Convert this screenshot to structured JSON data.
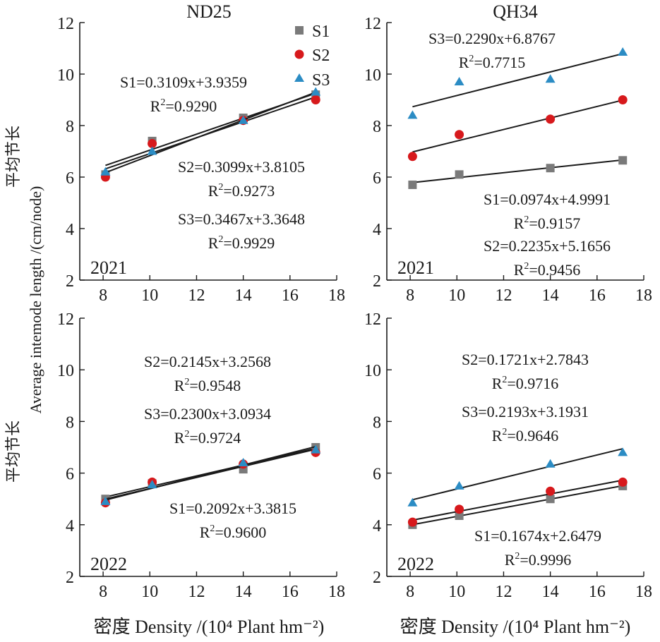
{
  "chart_data": [
    {
      "type": "scatter",
      "title": "ND25",
      "year": "2021",
      "x": [
        8.1,
        10.1,
        14,
        17.1
      ],
      "xlim": [
        7,
        18
      ],
      "ylim": [
        2,
        12
      ],
      "xticks": [
        8,
        10,
        12,
        14,
        16,
        18
      ],
      "yticks": [
        2,
        4,
        6,
        8,
        10,
        12
      ],
      "series": [
        {
          "name": "S1",
          "values": [
            6.1,
            7.4,
            8.3,
            9.2
          ],
          "fit": [
            0.3109,
            3.9359
          ],
          "equation": "S1=0.3109x+3.9359",
          "r2": "0.9290"
        },
        {
          "name": "S2",
          "values": [
            6.0,
            7.3,
            8.2,
            9.0
          ],
          "fit": [
            0.3099,
            3.8105
          ],
          "equation": "S2=0.3099x+3.8105",
          "r2": "0.9273"
        },
        {
          "name": "S3",
          "values": [
            6.2,
            7.0,
            8.2,
            9.3
          ],
          "fit": [
            0.3467,
            3.3648
          ],
          "equation": "S3=0.3467x+3.3648",
          "r2": "0.9929"
        }
      ]
    },
    {
      "type": "scatter",
      "title": "QH34",
      "year": "2021",
      "x": [
        8.1,
        10.1,
        14,
        17.1
      ],
      "xlim": [
        7,
        18
      ],
      "ylim": [
        2,
        12
      ],
      "xticks": [
        8,
        10,
        12,
        14,
        16,
        18
      ],
      "yticks": [
        2,
        4,
        6,
        8,
        10,
        12
      ],
      "series": [
        {
          "name": "S1",
          "values": [
            5.7,
            6.1,
            6.35,
            6.65
          ],
          "fit": [
            0.0974,
            4.9991
          ],
          "equation": "S1=0.0974x+4.9991",
          "r2": "0.9157"
        },
        {
          "name": "S2",
          "values": [
            6.8,
            7.65,
            8.25,
            9.0
          ],
          "fit": [
            0.2235,
            5.1656
          ],
          "equation": "S2=0.2235x+5.1656",
          "r2": "0.9456"
        },
        {
          "name": "S3",
          "values": [
            8.4,
            9.7,
            9.8,
            10.85
          ],
          "fit": [
            0.229,
            6.8767
          ],
          "equation": "S3=0.2290x+6.8767",
          "r2": "0.7715"
        }
      ]
    },
    {
      "type": "scatter",
      "year": "2022",
      "x": [
        8.1,
        10.1,
        14,
        17.1
      ],
      "xlim": [
        7,
        18
      ],
      "ylim": [
        2,
        12
      ],
      "xticks": [
        8,
        10,
        12,
        14,
        16,
        18
      ],
      "yticks": [
        2,
        4,
        6,
        8,
        10,
        12
      ],
      "series": [
        {
          "name": "S1",
          "values": [
            5.0,
            5.6,
            6.15,
            7.0
          ],
          "fit": [
            0.2092,
            3.3815
          ],
          "equation": "S1=0.2092x+3.3815",
          "r2": "0.9600"
        },
        {
          "name": "S2",
          "values": [
            4.85,
            5.65,
            6.35,
            6.8
          ],
          "fit": [
            0.2145,
            3.2568
          ],
          "equation": "S2=0.2145x+3.2568",
          "r2": "0.9548"
        },
        {
          "name": "S3",
          "values": [
            4.9,
            5.55,
            6.4,
            6.9
          ],
          "fit": [
            0.23,
            3.0934
          ],
          "equation": "S3=0.2300x+3.0934",
          "r2": "0.9724"
        }
      ]
    },
    {
      "type": "scatter",
      "year": "2022",
      "x": [
        8.1,
        10.1,
        14,
        17.1
      ],
      "xlim": [
        7,
        18
      ],
      "ylim": [
        2,
        12
      ],
      "xticks": [
        8,
        10,
        12,
        14,
        16,
        18
      ],
      "yticks": [
        2,
        4,
        6,
        8,
        10,
        12
      ],
      "series": [
        {
          "name": "S1",
          "values": [
            4.0,
            4.35,
            5.0,
            5.5
          ],
          "fit": [
            0.1674,
            2.6479
          ],
          "equation": "S1=0.1674x+2.6479",
          "r2": "0.9996"
        },
        {
          "name": "S2",
          "values": [
            4.1,
            4.6,
            5.3,
            5.65
          ],
          "fit": [
            0.1721,
            2.7843
          ],
          "equation": "S2=0.1721x+2.7843",
          "r2": "0.9716"
        },
        {
          "name": "S3",
          "values": [
            4.85,
            5.5,
            6.35,
            6.8
          ],
          "fit": [
            0.2193,
            3.1931
          ],
          "equation": "S3=0.2193x+3.1931",
          "r2": "0.9646"
        }
      ]
    }
  ],
  "legend": {
    "placement": "top-right of ND25 panel",
    "entries": [
      "S1",
      "S2",
      "S3"
    ]
  },
  "axis_labels": {
    "ylabel_cn": "平均节长",
    "ylabel_en": "Average intemode length /(cm/node)",
    "xlabel": "密度 Density /(10⁴ Plant hm⁻²)"
  },
  "r2_prefix": "R",
  "r2_sup": "2",
  "r2_eq": "=",
  "colors": {
    "S1": "#7a7a7a",
    "S2": "#d7191c",
    "S3": "#2b8cc4",
    "line": "#1a1a1a"
  },
  "markers": {
    "S1": "square",
    "S2": "circle",
    "S3": "triangle"
  }
}
